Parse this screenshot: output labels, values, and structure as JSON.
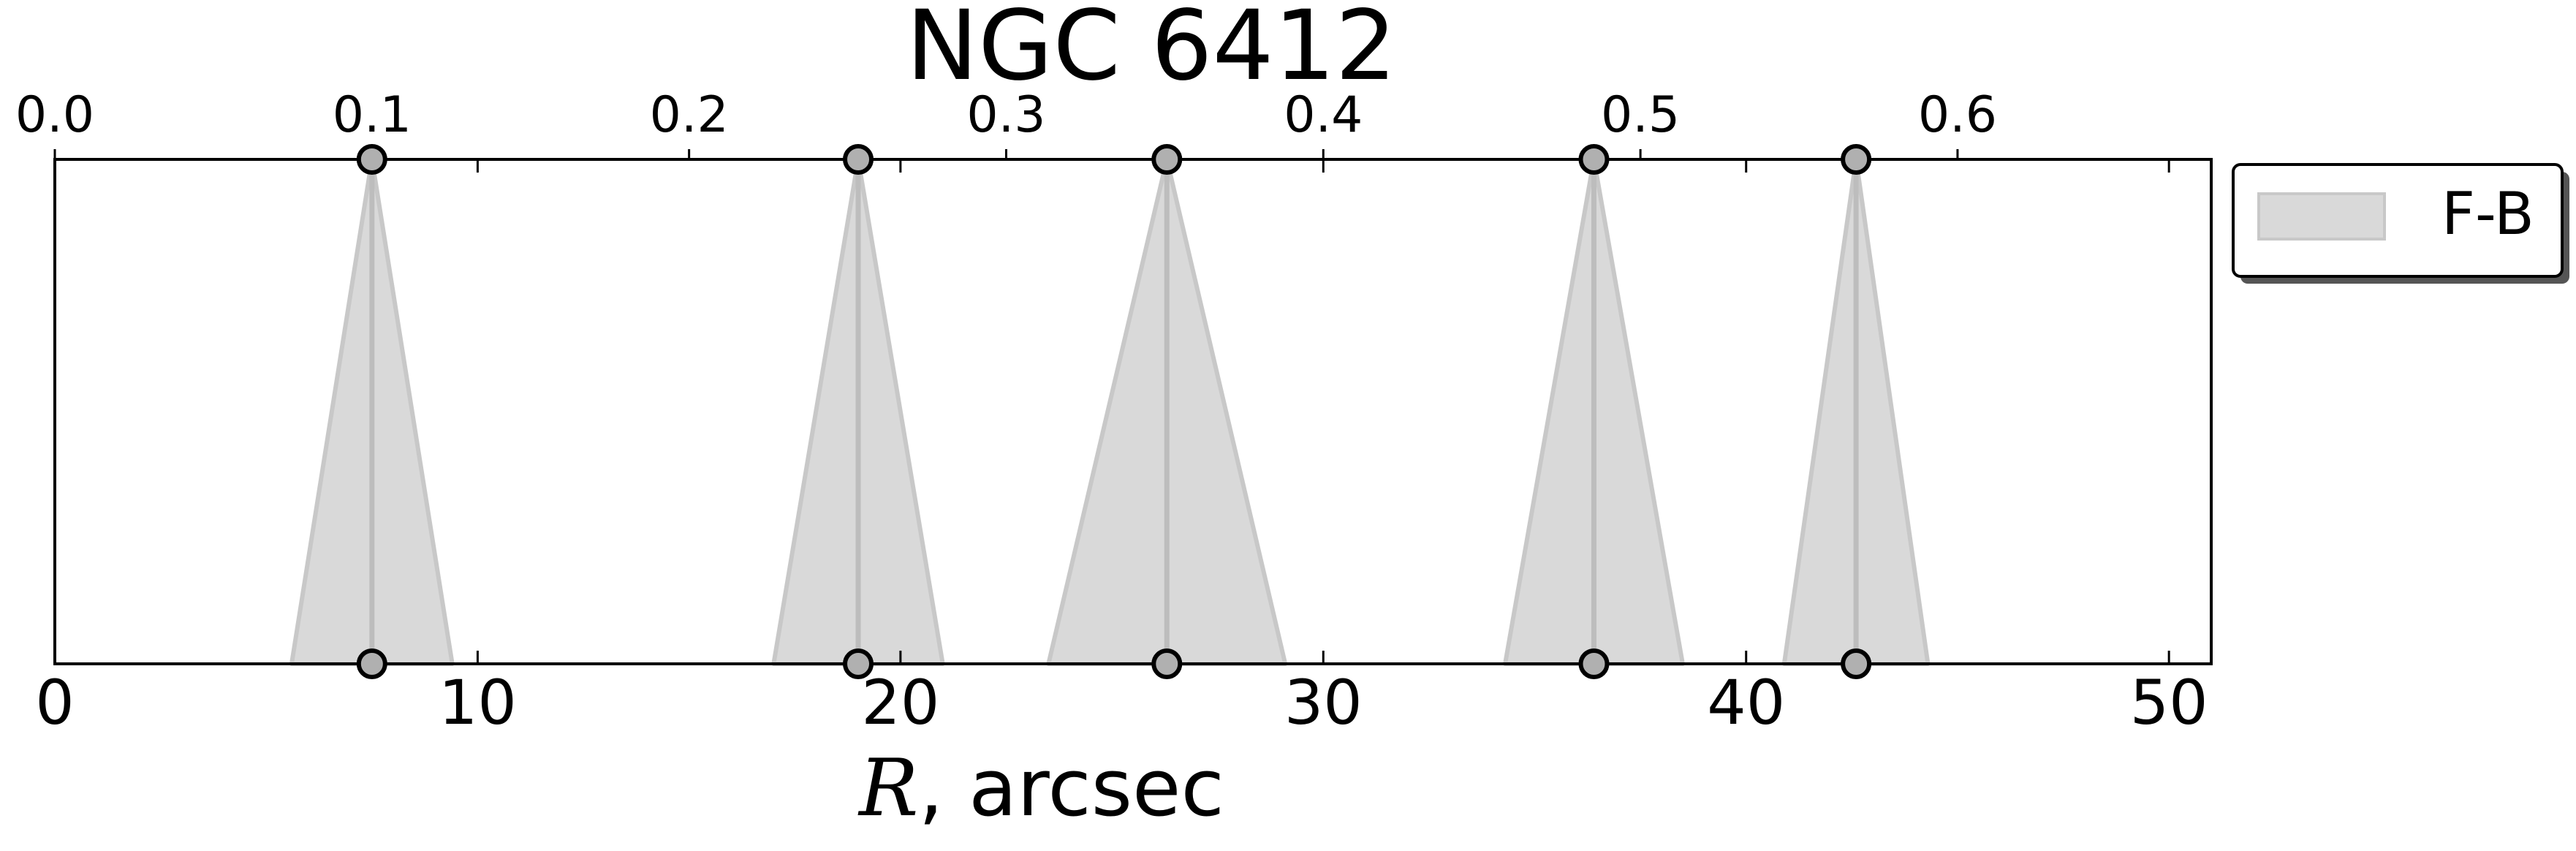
{
  "chart_data": {
    "type": "area",
    "title": "NGC 6412",
    "xlabel_var": "R",
    "xlabel_rest": ", arcsec",
    "xlim": [
      0,
      51
    ],
    "xticks": [
      0,
      10,
      20,
      30,
      40,
      50
    ],
    "top_xlim": [
      0,
      0.68
    ],
    "top_xticks": [
      "0.0",
      "0.1",
      "0.2",
      "0.3",
      "0.4",
      "0.5",
      "0.6"
    ],
    "legend": {
      "label": "F-B",
      "placement": "outside-right-top"
    },
    "series": [
      {
        "name": "F-B",
        "color": "#d9d9d9",
        "edge_color": "#c8c8c8",
        "center_color": "#bdbdbd",
        "marker_color": "#b0b0b0",
        "peaks": [
          {
            "center": 7.5,
            "left": 5.6,
            "right": 9.4
          },
          {
            "center": 19.0,
            "left": 17.0,
            "right": 21.0
          },
          {
            "center": 26.3,
            "left": 23.5,
            "right": 29.1
          },
          {
            "center": 36.4,
            "left": 34.3,
            "right": 38.5
          },
          {
            "center": 42.6,
            "left": 40.9,
            "right": 44.3
          }
        ]
      }
    ]
  }
}
